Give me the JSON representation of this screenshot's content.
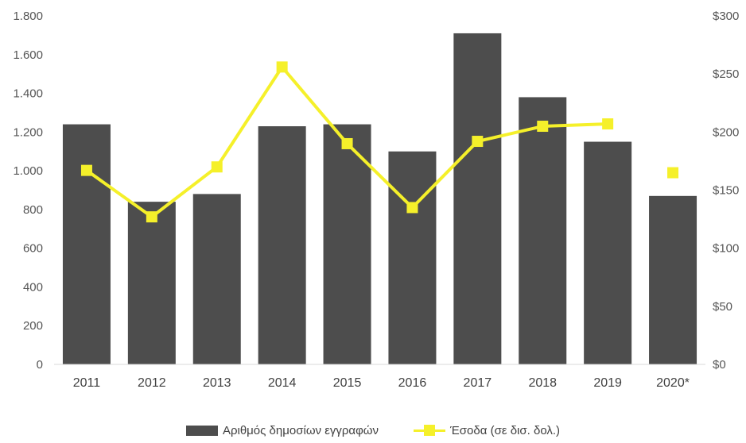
{
  "chart_data": {
    "type": "bar",
    "categories": [
      "2011",
      "2012",
      "2013",
      "2014",
      "2015",
      "2016",
      "2017",
      "2018",
      "2019",
      "2020*"
    ],
    "series": [
      {
        "name": "Αριθμός δημοσίων εγγραφών",
        "type": "bar",
        "axis": "left",
        "color": "#4d4d4d",
        "values": [
          1240,
          840,
          880,
          1230,
          1240,
          1100,
          1710,
          1380,
          1150,
          870
        ]
      },
      {
        "name": "Έσοδα (σε δισ. δολ.)",
        "type": "line",
        "axis": "right",
        "color": "#f5f02a",
        "values": [
          167,
          127,
          170,
          256,
          190,
          135,
          192,
          205,
          207,
          165
        ],
        "connected": [
          true,
          true,
          true,
          true,
          true,
          true,
          true,
          true,
          true,
          false
        ]
      }
    ],
    "y_left": {
      "range": [
        0,
        1800
      ],
      "tick_values": [
        0,
        200,
        400,
        600,
        800,
        1000,
        1200,
        1400,
        1600,
        1800
      ],
      "tick_labels": [
        "0",
        "200",
        "400",
        "600",
        "800",
        "1.000",
        "1.200",
        "1.400",
        "1.600",
        "1.800"
      ]
    },
    "y_right": {
      "range": [
        0,
        300
      ],
      "tick_values": [
        0,
        50,
        100,
        150,
        200,
        250,
        300
      ],
      "tick_labels": [
        "$0",
        "$50",
        "$100",
        "$150",
        "$200",
        "$250",
        "$300"
      ]
    },
    "grid": false,
    "legend_position": "bottom"
  }
}
